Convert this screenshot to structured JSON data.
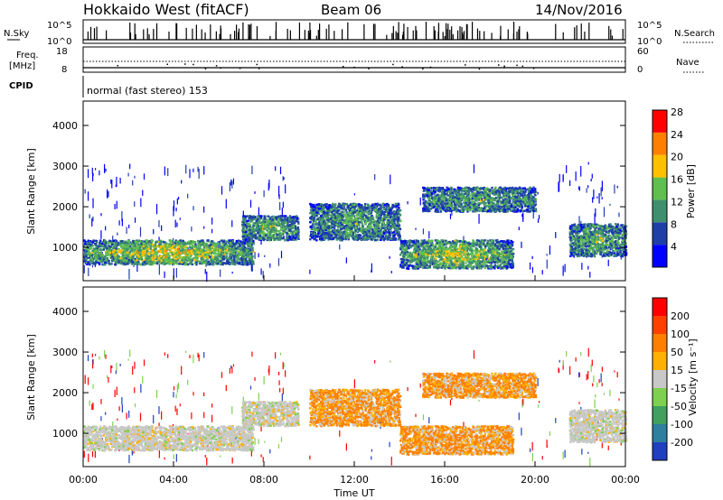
{
  "header": {
    "station": "Hokkaido West (fitACF)",
    "beam": "Beam 06",
    "date": "14/Nov/2016"
  },
  "noise_panel": {
    "left_label": "N.Sky",
    "right_label": "N.Search",
    "ticks_left": [
      "10^5",
      "10^0"
    ],
    "ticks_right": [
      "10^5",
      "10^0"
    ]
  },
  "freq_panel": {
    "left_label_1": "Freq.",
    "left_label_2": "[MHz]",
    "right_label": "Nave",
    "ticks_left": [
      "18",
      "8"
    ],
    "ticks_right": [
      "60",
      "0"
    ]
  },
  "cpid_panel": {
    "left_label": "CPID",
    "mode": "normal (fast stereo) 153"
  },
  "chart_data": [
    {
      "type": "heatmap",
      "name": "power",
      "ylabel": "Slant Range [km]",
      "y_ticks": [
        "1000",
        "2000",
        "3000",
        "4000"
      ],
      "ylim": [
        180,
        4600
      ],
      "colorbar_label": "Power [dB]",
      "colorbar_ticks": [
        "4",
        "8",
        "12",
        "16",
        "20",
        "24",
        "28"
      ],
      "colorbar_colors": [
        "#0000ff",
        "#1f3fa8",
        "#3f8f6f",
        "#5fbf4f",
        "#ffc000",
        "#ff8000",
        "#ff0000"
      ],
      "regions": [
        {
          "x": [
            0,
            7.5
          ],
          "y": [
            600,
            1200
          ],
          "level": 0.55
        },
        {
          "x": [
            7,
            9.5
          ],
          "y": [
            1200,
            1800
          ],
          "level": 0.35
        },
        {
          "x": [
            10,
            14
          ],
          "y": [
            1200,
            2100
          ],
          "level": 0.3
        },
        {
          "x": [
            14,
            19
          ],
          "y": [
            500,
            1200
          ],
          "level": 0.5
        },
        {
          "x": [
            15,
            20
          ],
          "y": [
            1900,
            2500
          ],
          "level": 0.3
        },
        {
          "x": [
            21.5,
            24
          ],
          "y": [
            800,
            1600
          ],
          "level": 0.35
        }
      ]
    },
    {
      "type": "heatmap",
      "name": "velocity",
      "ylabel": "Slant Range [km]",
      "xlabel": "Time UT",
      "x_ticks": [
        "00:00",
        "04:00",
        "08:00",
        "12:00",
        "16:00",
        "20:00",
        "00:00"
      ],
      "y_ticks": [
        "1000",
        "2000",
        "3000",
        "4000"
      ],
      "ylim": [
        180,
        4600
      ],
      "colorbar_label": "Velocity [m s⁻¹]",
      "colorbar_ticks": [
        "200",
        "100",
        "50",
        "15",
        "-15",
        "-50",
        "-100",
        "-200"
      ],
      "colorbar_colors": [
        "#2040c0",
        "#2f7f9f",
        "#3fa05f",
        "#7fd04f",
        "#c8c8c8",
        "#ffb000",
        "#ff8000",
        "#ff4000",
        "#ff0000"
      ]
    }
  ]
}
